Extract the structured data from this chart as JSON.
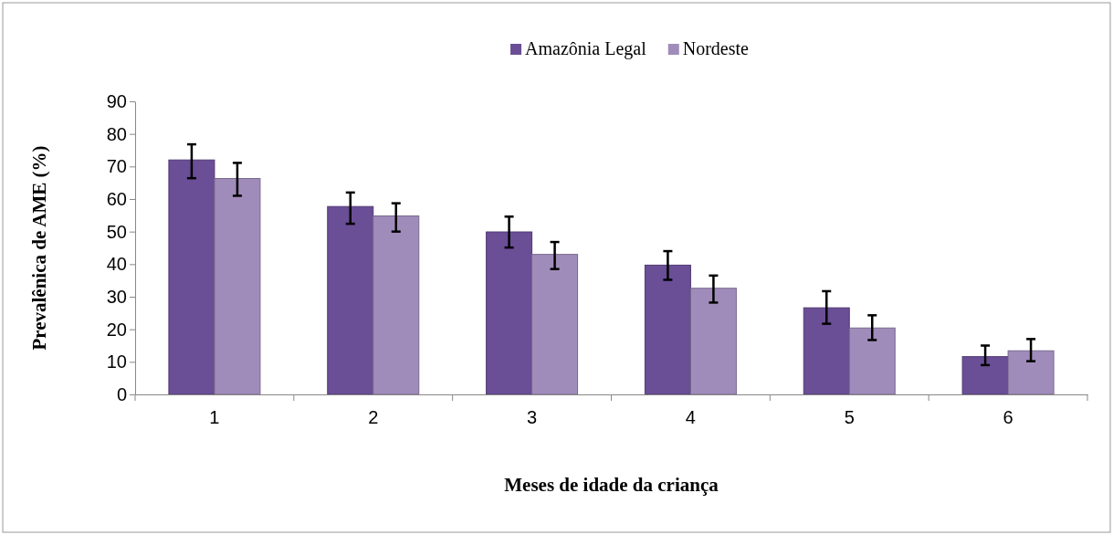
{
  "chart_data": {
    "type": "bar",
    "xlabel": "Meses de idade da criança",
    "ylabel": "Prevalênica de AME (%)",
    "categories": [
      "1",
      "2",
      "3",
      "4",
      "5",
      "6"
    ],
    "series": [
      {
        "name": "Amazônia Legal",
        "color": "#6a4e96",
        "values": [
          72.0,
          57.7,
          49.9,
          39.7,
          26.6,
          11.6
        ],
        "errors": [
          [
            66.4,
            76.8
          ],
          [
            52.4,
            62.0
          ],
          [
            45.1,
            54.6
          ],
          [
            35.2,
            44.0
          ],
          [
            21.7,
            31.7
          ],
          [
            9.0,
            15.0
          ]
        ]
      },
      {
        "name": "Nordeste",
        "color": "#a08cba",
        "values": [
          66.3,
          54.8,
          43.0,
          32.6,
          20.4,
          13.4
        ],
        "errors": [
          [
            61.0,
            71.1
          ],
          [
            50.0,
            58.7
          ],
          [
            38.5,
            46.8
          ],
          [
            28.2,
            36.5
          ],
          [
            16.7,
            24.3
          ],
          [
            10.2,
            17.0
          ]
        ]
      }
    ],
    "ylim": [
      0,
      90
    ],
    "yticks": [
      0,
      10,
      20,
      30,
      40,
      50,
      60,
      70,
      80,
      90
    ],
    "grid": false,
    "legend": "top"
  }
}
